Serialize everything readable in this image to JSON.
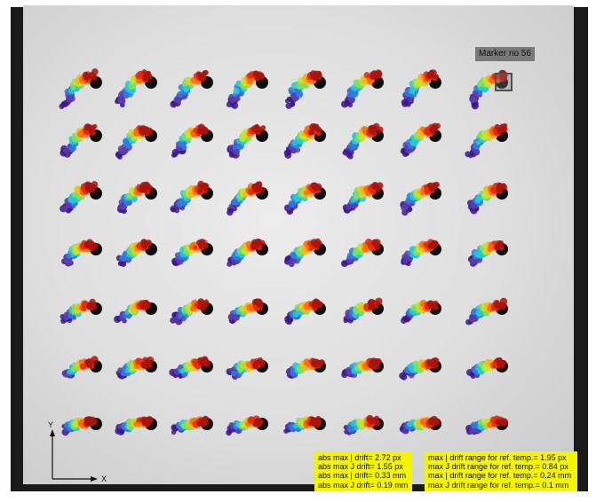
{
  "image": {
    "description_elements": {
      "grid": {
        "rows": 7,
        "cols": 8,
        "marker_visual": "black disc with rainbow-colored drift trail (purple to red)"
      }
    },
    "colors": {
      "frame": "#1a1a1a",
      "plate": "#dedede",
      "highlight": "#f5f500",
      "trail_palette": [
        "#3a1a8c",
        "#5a3db0",
        "#2b7fe0",
        "#27c9d6",
        "#7be25a",
        "#c9e32a",
        "#ffb21e",
        "#ff6a12",
        "#e02a12",
        "#a8140f"
      ]
    }
  },
  "marker_label": "Marker no 56",
  "axes": {
    "y": "Y",
    "x": "X"
  },
  "stats_left": [
    "abs max | drift= 2.72 px",
    "abs max J drift= 1.55 px",
    "abs max | drift= 0.33 mm",
    "abs max J drift= 0.19 mm"
  ],
  "stats_right": [
    "max | drift range for ref. temp.= 1.95 px",
    "max J drift range for ref. temp.=  0.84 px",
    "max | drift range for ref. temp.= 0.24 mm",
    "max J drift range for ref. temp.=  0.1 mm"
  ]
}
